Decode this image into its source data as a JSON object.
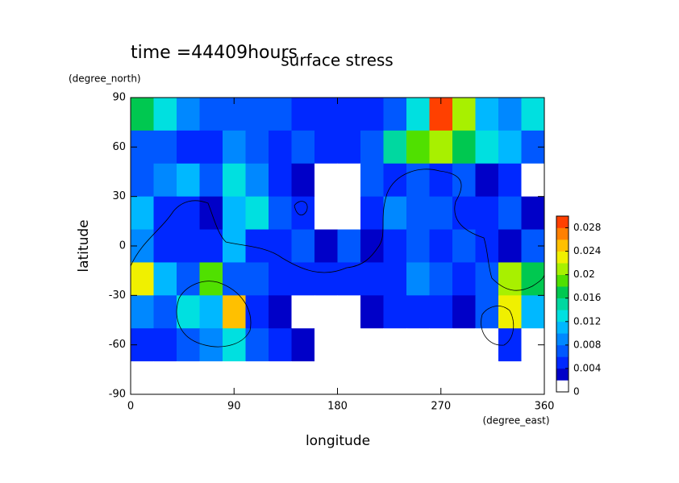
{
  "chart_data": {
    "type": "contour",
    "title": "surface stress",
    "subtitle": "time =44409hours",
    "x_label": "longitude",
    "x_unit": "(degree_east)",
    "y_label": "latitude",
    "y_unit": "(degree_north)",
    "xlim": [
      0,
      360
    ],
    "xticks": [
      0,
      90,
      180,
      270,
      360
    ],
    "ylim": [
      -90,
      90
    ],
    "yticks": [
      -90,
      -60,
      -30,
      0,
      30,
      60,
      90
    ],
    "x": [
      0,
      20,
      40,
      60,
      80,
      100,
      120,
      140,
      160,
      180,
      200,
      220,
      240,
      260,
      280,
      300,
      320,
      340,
      360
    ],
    "y": [
      90,
      70,
      50,
      30,
      10,
      -10,
      -30,
      -50,
      -70,
      -90
    ],
    "z": [
      [
        0.016,
        0.012,
        0.008,
        0.006,
        0.006,
        0.006,
        0.006,
        0.004,
        0.004,
        0.004,
        0.004,
        0.006,
        0.012,
        0.028,
        0.02,
        0.01,
        0.008,
        0.012
      ],
      [
        0.006,
        0.006,
        0.004,
        0.004,
        0.008,
        0.006,
        0.004,
        0.006,
        0.004,
        0.004,
        0.006,
        0.014,
        0.018,
        0.02,
        0.016,
        0.012,
        0.01,
        0.006
      ],
      [
        0.006,
        0.008,
        0.01,
        0.006,
        0.012,
        0.008,
        0.004,
        0.002,
        0,
        0,
        0.006,
        0.004,
        0.006,
        0.004,
        0.006,
        0.002,
        0.004,
        0
      ],
      [
        0.01,
        0.004,
        0.004,
        0.002,
        0.01,
        0.012,
        0.006,
        0.004,
        0,
        0,
        0.004,
        0.008,
        0.006,
        0.006,
        0.004,
        0.004,
        0.006,
        0.002
      ],
      [
        0.008,
        0.004,
        0.004,
        0.004,
        0.01,
        0.004,
        0.004,
        0.006,
        0.002,
        0.006,
        0.002,
        0.004,
        0.006,
        0.004,
        0.006,
        0.004,
        0.002,
        0.006
      ],
      [
        0.022,
        0.01,
        0.006,
        0.018,
        0.006,
        0.006,
        0.004,
        0.004,
        0.004,
        0.004,
        0.004,
        0.004,
        0.008,
        0.006,
        0.004,
        0.006,
        0.02,
        0.016
      ],
      [
        0.008,
        0.006,
        0.012,
        0.01,
        0.024,
        0.004,
        0.002,
        0,
        0,
        0,
        0.002,
        0.004,
        0.004,
        0.004,
        0.002,
        0.006,
        0.022,
        0.01
      ],
      [
        0.004,
        0.004,
        0.006,
        0.008,
        0.012,
        0.006,
        0.004,
        0.002,
        0,
        0,
        0,
        0,
        0,
        0,
        0,
        0,
        0.004,
        0
      ],
      [
        0,
        0,
        0,
        0,
        0,
        0,
        0,
        0,
        0,
        0,
        0,
        0,
        0,
        0,
        0,
        0,
        0,
        0
      ]
    ],
    "levels": [
      0,
      0.002,
      0.004,
      0.006,
      0.008,
      0.01,
      0.012,
      0.014,
      0.016,
      0.018,
      0.02,
      0.022,
      0.024,
      0.026,
      0.028,
      0.03
    ],
    "colors": [
      "#ffffff",
      "#0000c8",
      "#0028ff",
      "#0058ff",
      "#0088ff",
      "#00b8ff",
      "#00e0e0",
      "#00d8a0",
      "#00c850",
      "#50e000",
      "#a8f000",
      "#f0f000",
      "#ffc000",
      "#ff8000",
      "#ff4000"
    ],
    "clim": [
      0,
      0.03
    ],
    "cticks": [
      0,
      0.004,
      0.008,
      0.012,
      0.016,
      0.02,
      0.024,
      0.028
    ]
  }
}
